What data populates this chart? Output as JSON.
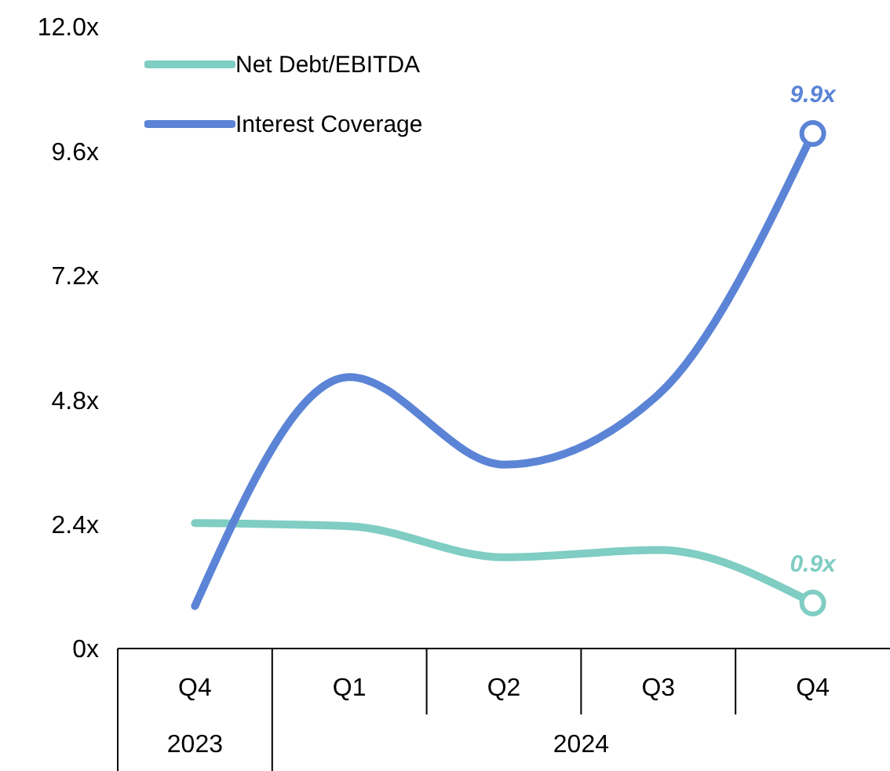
{
  "chart_data": {
    "type": "line",
    "categories": [
      "Q4",
      "Q1",
      "Q2",
      "Q3",
      "Q4"
    ],
    "series": [
      {
        "name": "Net Debt/EBITDA",
        "color": "#7fcdc3",
        "values": [
          2.42,
          2.36,
          1.76,
          1.9,
          0.88
        ],
        "value_labels": [
          null,
          null,
          null,
          null,
          "0.9x"
        ]
      },
      {
        "name": "Interest Coverage",
        "color": "#5b84d6",
        "values": [
          0.82,
          5.24,
          3.55,
          4.9,
          9.94
        ],
        "value_labels": [
          null,
          null,
          null,
          null,
          "9.9x"
        ]
      }
    ],
    "ylim": [
      0,
      12
    ],
    "yticks": [
      {
        "value": 0,
        "label": "0x"
      },
      {
        "value": 2.4,
        "label": "2.4x"
      },
      {
        "value": 4.8,
        "label": "4.8x"
      },
      {
        "value": 7.2,
        "label": "7.2x"
      },
      {
        "value": 9.6,
        "label": "9.6x"
      },
      {
        "value": 12,
        "label": "12.0x"
      }
    ],
    "annotations": [
      "2023",
      "2024"
    ],
    "grid": false,
    "legend": "top left",
    "line_style": "solid"
  }
}
